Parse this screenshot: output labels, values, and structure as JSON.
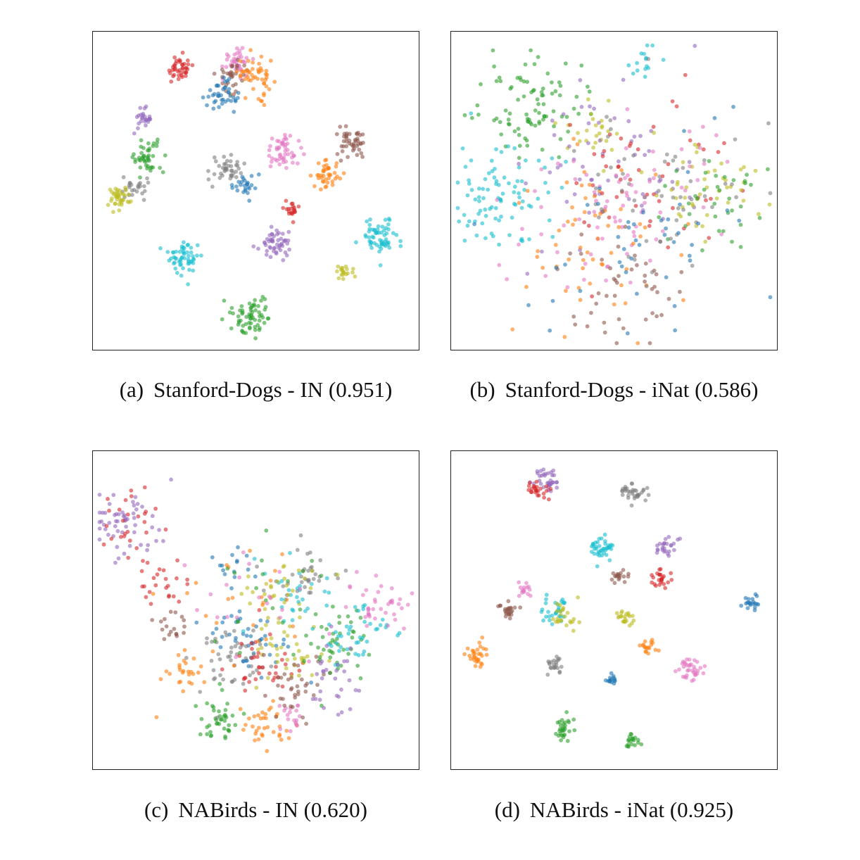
{
  "palette": {
    "blue": "#1f77b4",
    "orange": "#ff7f0e",
    "green": "#2ca02c",
    "red": "#d62728",
    "purple": "#9467bd",
    "brown": "#8c564b",
    "pink": "#e377c2",
    "gray": "#7f7f7f",
    "olive": "#bcbd22",
    "cyan": "#17becf"
  },
  "panels": [
    {
      "label": "(a)",
      "caption": "Stanford-Dogs - IN (0.951)"
    },
    {
      "label": "(b)",
      "caption": "Stanford-Dogs - iNat (0.586)"
    },
    {
      "label": "(c)",
      "caption": "NABirds - IN (0.620)"
    },
    {
      "label": "(d)",
      "caption": "NABirds - iNat (0.925)"
    }
  ],
  "chart_data": [
    {
      "type": "scatter",
      "title": "",
      "xlabel": "",
      "ylabel": "",
      "xlim": [
        0,
        1
      ],
      "ylim": [
        0,
        1
      ],
      "grid": false,
      "axes_ticks": false,
      "clusters": [
        {
          "color": "red",
          "x": 0.26,
          "y": 0.89,
          "spread": 0.022,
          "n": 40
        },
        {
          "color": "pink",
          "x": 0.44,
          "y": 0.92,
          "spread": 0.022,
          "n": 40
        },
        {
          "color": "brown",
          "x": 0.43,
          "y": 0.87,
          "spread": 0.025,
          "n": 30
        },
        {
          "color": "orange",
          "x": 0.5,
          "y": 0.87,
          "spread": 0.03,
          "n": 50
        },
        {
          "color": "blue",
          "x": 0.39,
          "y": 0.8,
          "spread": 0.025,
          "n": 40
        },
        {
          "color": "purple",
          "x": 0.15,
          "y": 0.73,
          "spread": 0.016,
          "n": 25
        },
        {
          "color": "brown",
          "x": 0.8,
          "y": 0.65,
          "spread": 0.026,
          "n": 45
        },
        {
          "color": "pink",
          "x": 0.59,
          "y": 0.63,
          "spread": 0.028,
          "n": 50
        },
        {
          "color": "green",
          "x": 0.16,
          "y": 0.61,
          "spread": 0.026,
          "n": 45
        },
        {
          "color": "gray",
          "x": 0.41,
          "y": 0.57,
          "spread": 0.025,
          "n": 40
        },
        {
          "color": "blue",
          "x": 0.47,
          "y": 0.52,
          "spread": 0.02,
          "n": 25
        },
        {
          "color": "orange",
          "x": 0.72,
          "y": 0.55,
          "spread": 0.022,
          "n": 40
        },
        {
          "color": "gray",
          "x": 0.12,
          "y": 0.51,
          "spread": 0.018,
          "n": 25
        },
        {
          "color": "olive",
          "x": 0.07,
          "y": 0.48,
          "spread": 0.02,
          "n": 40
        },
        {
          "color": "red",
          "x": 0.61,
          "y": 0.44,
          "spread": 0.014,
          "n": 20
        },
        {
          "color": "cyan",
          "x": 0.89,
          "y": 0.35,
          "spread": 0.03,
          "n": 60
        },
        {
          "color": "purple",
          "x": 0.56,
          "y": 0.33,
          "spread": 0.026,
          "n": 50
        },
        {
          "color": "cyan",
          "x": 0.28,
          "y": 0.29,
          "spread": 0.027,
          "n": 55
        },
        {
          "color": "olive",
          "x": 0.78,
          "y": 0.24,
          "spread": 0.016,
          "n": 20
        },
        {
          "color": "green",
          "x": 0.49,
          "y": 0.1,
          "spread": 0.03,
          "n": 65
        }
      ]
    },
    {
      "type": "scatter",
      "title": "",
      "xlabel": "",
      "ylabel": "",
      "xlim": [
        0,
        1
      ],
      "ylim": [
        0,
        1
      ],
      "grid": false,
      "axes_ticks": false,
      "clusters": [
        {
          "color": "green",
          "x": 0.25,
          "y": 0.78,
          "spread": 0.075,
          "n": 90
        },
        {
          "color": "cyan",
          "x": 0.14,
          "y": 0.48,
          "spread": 0.085,
          "n": 90
        },
        {
          "color": "cyan",
          "x": 0.6,
          "y": 0.92,
          "spread": 0.03,
          "n": 15
        },
        {
          "color": "olive",
          "x": 0.43,
          "y": 0.7,
          "spread": 0.045,
          "n": 25
        },
        {
          "color": "purple",
          "x": 0.45,
          "y": 0.6,
          "spread": 0.15,
          "n": 60
        },
        {
          "color": "red",
          "x": 0.6,
          "y": 0.55,
          "spread": 0.14,
          "n": 50
        },
        {
          "color": "pink",
          "x": 0.46,
          "y": 0.4,
          "spread": 0.12,
          "n": 55
        },
        {
          "color": "orange",
          "x": 0.45,
          "y": 0.33,
          "spread": 0.13,
          "n": 60
        },
        {
          "color": "brown",
          "x": 0.53,
          "y": 0.2,
          "spread": 0.11,
          "n": 45
        },
        {
          "color": "olive",
          "x": 0.81,
          "y": 0.5,
          "spread": 0.09,
          "n": 45
        },
        {
          "color": "green",
          "x": 0.82,
          "y": 0.47,
          "spread": 0.08,
          "n": 35
        },
        {
          "color": "gray",
          "x": 0.62,
          "y": 0.47,
          "spread": 0.14,
          "n": 55
        },
        {
          "color": "blue",
          "x": 0.6,
          "y": 0.38,
          "spread": 0.16,
          "n": 45
        },
        {
          "color": "pink",
          "x": 0.64,
          "y": 0.58,
          "spread": 0.12,
          "n": 25
        }
      ]
    },
    {
      "type": "scatter",
      "title": "",
      "xlabel": "",
      "ylabel": "",
      "xlim": [
        0,
        1
      ],
      "ylim": [
        0,
        1
      ],
      "grid": false,
      "axes_ticks": false,
      "clusters": [
        {
          "color": "purple",
          "x": 0.09,
          "y": 0.78,
          "spread": 0.06,
          "n": 55
        },
        {
          "color": "red",
          "x": 0.1,
          "y": 0.8,
          "spread": 0.05,
          "n": 25
        },
        {
          "color": "red",
          "x": 0.22,
          "y": 0.58,
          "spread": 0.06,
          "n": 25
        },
        {
          "color": "brown",
          "x": 0.24,
          "y": 0.45,
          "spread": 0.03,
          "n": 18
        },
        {
          "color": "orange",
          "x": 0.27,
          "y": 0.3,
          "spread": 0.032,
          "n": 25
        },
        {
          "color": "green",
          "x": 0.38,
          "y": 0.15,
          "spread": 0.035,
          "n": 40
        },
        {
          "color": "orange",
          "x": 0.53,
          "y": 0.13,
          "spread": 0.035,
          "n": 35
        },
        {
          "color": "pink",
          "x": 0.62,
          "y": 0.15,
          "spread": 0.025,
          "n": 18
        },
        {
          "color": "blue",
          "x": 0.48,
          "y": 0.41,
          "spread": 0.06,
          "n": 45
        },
        {
          "color": "gray",
          "x": 0.44,
          "y": 0.33,
          "spread": 0.06,
          "n": 45
        },
        {
          "color": "red",
          "x": 0.52,
          "y": 0.31,
          "spread": 0.06,
          "n": 35
        },
        {
          "color": "olive",
          "x": 0.6,
          "y": 0.36,
          "spread": 0.06,
          "n": 35
        },
        {
          "color": "brown",
          "x": 0.61,
          "y": 0.24,
          "spread": 0.06,
          "n": 35
        },
        {
          "color": "gray",
          "x": 0.65,
          "y": 0.6,
          "spread": 0.05,
          "n": 35
        },
        {
          "color": "cyan",
          "x": 0.63,
          "y": 0.56,
          "spread": 0.06,
          "n": 30
        },
        {
          "color": "olive",
          "x": 0.58,
          "y": 0.57,
          "spread": 0.07,
          "n": 30
        },
        {
          "color": "green",
          "x": 0.74,
          "y": 0.39,
          "spread": 0.06,
          "n": 45
        },
        {
          "color": "cyan",
          "x": 0.83,
          "y": 0.42,
          "spread": 0.05,
          "n": 40
        },
        {
          "color": "pink",
          "x": 0.9,
          "y": 0.52,
          "spread": 0.05,
          "n": 40
        },
        {
          "color": "purple",
          "x": 0.75,
          "y": 0.28,
          "spread": 0.05,
          "n": 30
        },
        {
          "color": "blue",
          "x": 0.44,
          "y": 0.64,
          "spread": 0.04,
          "n": 15
        },
        {
          "color": "orange",
          "x": 0.45,
          "y": 0.5,
          "spread": 0.12,
          "n": 25
        },
        {
          "color": "pink",
          "x": 0.47,
          "y": 0.52,
          "spread": 0.11,
          "n": 20
        },
        {
          "color": "green",
          "x": 0.52,
          "y": 0.5,
          "spread": 0.12,
          "n": 20
        }
      ]
    },
    {
      "type": "scatter",
      "title": "",
      "xlabel": "",
      "ylabel": "",
      "xlim": [
        0,
        1
      ],
      "ylim": [
        0,
        1
      ],
      "grid": false,
      "axes_ticks": false,
      "clusters": [
        {
          "color": "purple",
          "x": 0.29,
          "y": 0.92,
          "spread": 0.02,
          "n": 35
        },
        {
          "color": "red",
          "x": 0.26,
          "y": 0.88,
          "spread": 0.017,
          "n": 25
        },
        {
          "color": "gray",
          "x": 0.56,
          "y": 0.88,
          "spread": 0.018,
          "n": 35
        },
        {
          "color": "cyan",
          "x": 0.46,
          "y": 0.7,
          "spread": 0.022,
          "n": 40
        },
        {
          "color": "purple",
          "x": 0.66,
          "y": 0.7,
          "spread": 0.016,
          "n": 25
        },
        {
          "color": "brown",
          "x": 0.52,
          "y": 0.61,
          "spread": 0.013,
          "n": 18
        },
        {
          "color": "red",
          "x": 0.65,
          "y": 0.6,
          "spread": 0.017,
          "n": 25
        },
        {
          "color": "pink",
          "x": 0.22,
          "y": 0.57,
          "spread": 0.012,
          "n": 15
        },
        {
          "color": "brown",
          "x": 0.16,
          "y": 0.5,
          "spread": 0.017,
          "n": 25
        },
        {
          "color": "cyan",
          "x": 0.32,
          "y": 0.5,
          "spread": 0.02,
          "n": 30
        },
        {
          "color": "olive",
          "x": 0.34,
          "y": 0.48,
          "spread": 0.022,
          "n": 25
        },
        {
          "color": "olive",
          "x": 0.53,
          "y": 0.47,
          "spread": 0.014,
          "n": 22
        },
        {
          "color": "blue",
          "x": 0.93,
          "y": 0.53,
          "spread": 0.012,
          "n": 20
        },
        {
          "color": "orange",
          "x": 0.07,
          "y": 0.36,
          "spread": 0.018,
          "n": 30
        },
        {
          "color": "orange",
          "x": 0.61,
          "y": 0.38,
          "spread": 0.013,
          "n": 18
        },
        {
          "color": "gray",
          "x": 0.31,
          "y": 0.33,
          "spread": 0.014,
          "n": 22
        },
        {
          "color": "pink",
          "x": 0.74,
          "y": 0.31,
          "spread": 0.02,
          "n": 35
        },
        {
          "color": "blue",
          "x": 0.49,
          "y": 0.28,
          "spread": 0.011,
          "n": 15
        },
        {
          "color": "green",
          "x": 0.34,
          "y": 0.12,
          "spread": 0.018,
          "n": 30
        },
        {
          "color": "green",
          "x": 0.56,
          "y": 0.08,
          "spread": 0.013,
          "n": 20
        }
      ]
    }
  ]
}
